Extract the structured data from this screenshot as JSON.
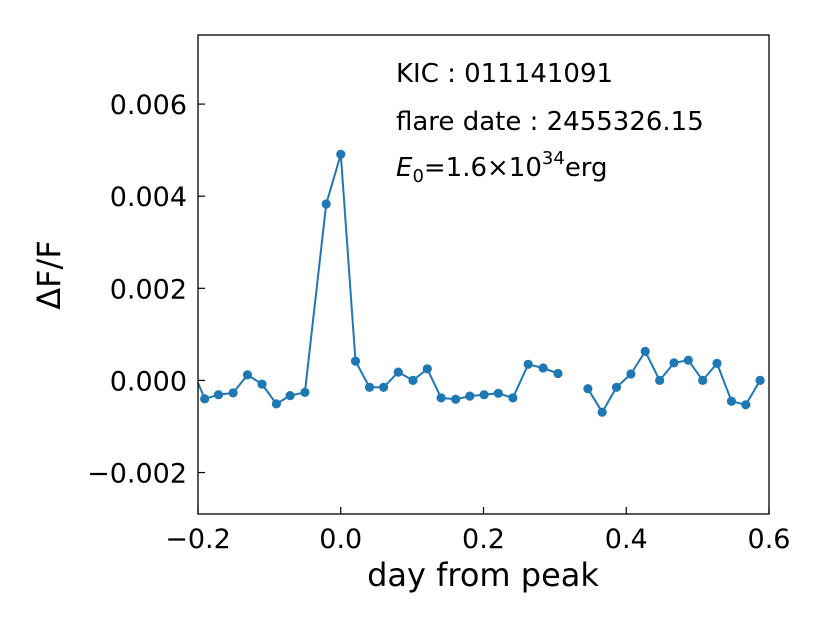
{
  "chart_data": {
    "type": "line",
    "xlabel": "day from peak",
    "ylabel": "ΔF/F",
    "xlim": [
      -0.2,
      0.6
    ],
    "ylim": [
      -0.0029,
      0.0075
    ],
    "xticks": [
      -0.2,
      0.0,
      0.2,
      0.4,
      0.6
    ],
    "xtick_labels": [
      "−0.2",
      "0.0",
      "0.2",
      "0.4",
      "0.6"
    ],
    "yticks": [
      -0.002,
      0.0,
      0.002,
      0.004,
      0.006
    ],
    "ytick_labels": [
      "−0.002",
      "0.000",
      "0.002",
      "0.004",
      "0.006"
    ],
    "grid": false,
    "color": "#1f77b4",
    "annotations": {
      "kic": "KIC : 011141091",
      "flare_date": "flare date : 2455326.15",
      "energy_symbol": "E",
      "energy_subscript": "0",
      "energy_mid": "=1.6×10",
      "energy_exponent": "34",
      "energy_unit": "erg"
    },
    "segments": [
      [
        [
          -0.2,
          -5e-05
        ],
        [
          -0.1906,
          -0.0004
        ],
        [
          -0.1713,
          -0.00031
        ],
        [
          -0.1508,
          -0.00027
        ],
        [
          -0.1306,
          0.00012
        ],
        [
          -0.1104,
          -8e-05
        ],
        [
          -0.0902,
          -0.00051
        ],
        [
          -0.0709,
          -0.00033
        ],
        [
          -0.0502,
          -0.00026
        ],
        [
          -0.0204,
          0.00383
        ],
        [
          0.0,
          0.00491
        ],
        [
          0.0206,
          0.00042
        ],
        [
          0.0403,
          -0.00015
        ],
        [
          0.0601,
          -0.00015
        ],
        [
          0.0806,
          0.00018
        ],
        [
          0.1012,
          0.0
        ],
        [
          0.1213,
          0.00025
        ],
        [
          0.1406,
          -0.00038
        ],
        [
          0.1611,
          -0.00041
        ],
        [
          0.1808,
          -0.00034
        ],
        [
          0.2009,
          -0.00031
        ],
        [
          0.2207,
          -0.00028
        ],
        [
          0.2412,
          -0.00038
        ],
        [
          0.2626,
          0.00035
        ],
        [
          0.2835,
          0.00027
        ],
        [
          0.3044,
          0.00015
        ]
      ],
      [
        [
          0.3462,
          -0.00018
        ],
        [
          0.3663,
          -0.00069
        ],
        [
          0.3864,
          -0.00015
        ],
        [
          0.4065,
          0.00014
        ],
        [
          0.4266,
          0.00063
        ],
        [
          0.4468,
          0.0
        ],
        [
          0.4669,
          0.00038
        ],
        [
          0.487,
          0.00044
        ],
        [
          0.5071,
          0.0
        ],
        [
          0.5272,
          0.00037
        ],
        [
          0.5474,
          -0.00045
        ],
        [
          0.5675,
          -0.00053
        ],
        [
          0.5876,
          0.0
        ]
      ]
    ]
  }
}
